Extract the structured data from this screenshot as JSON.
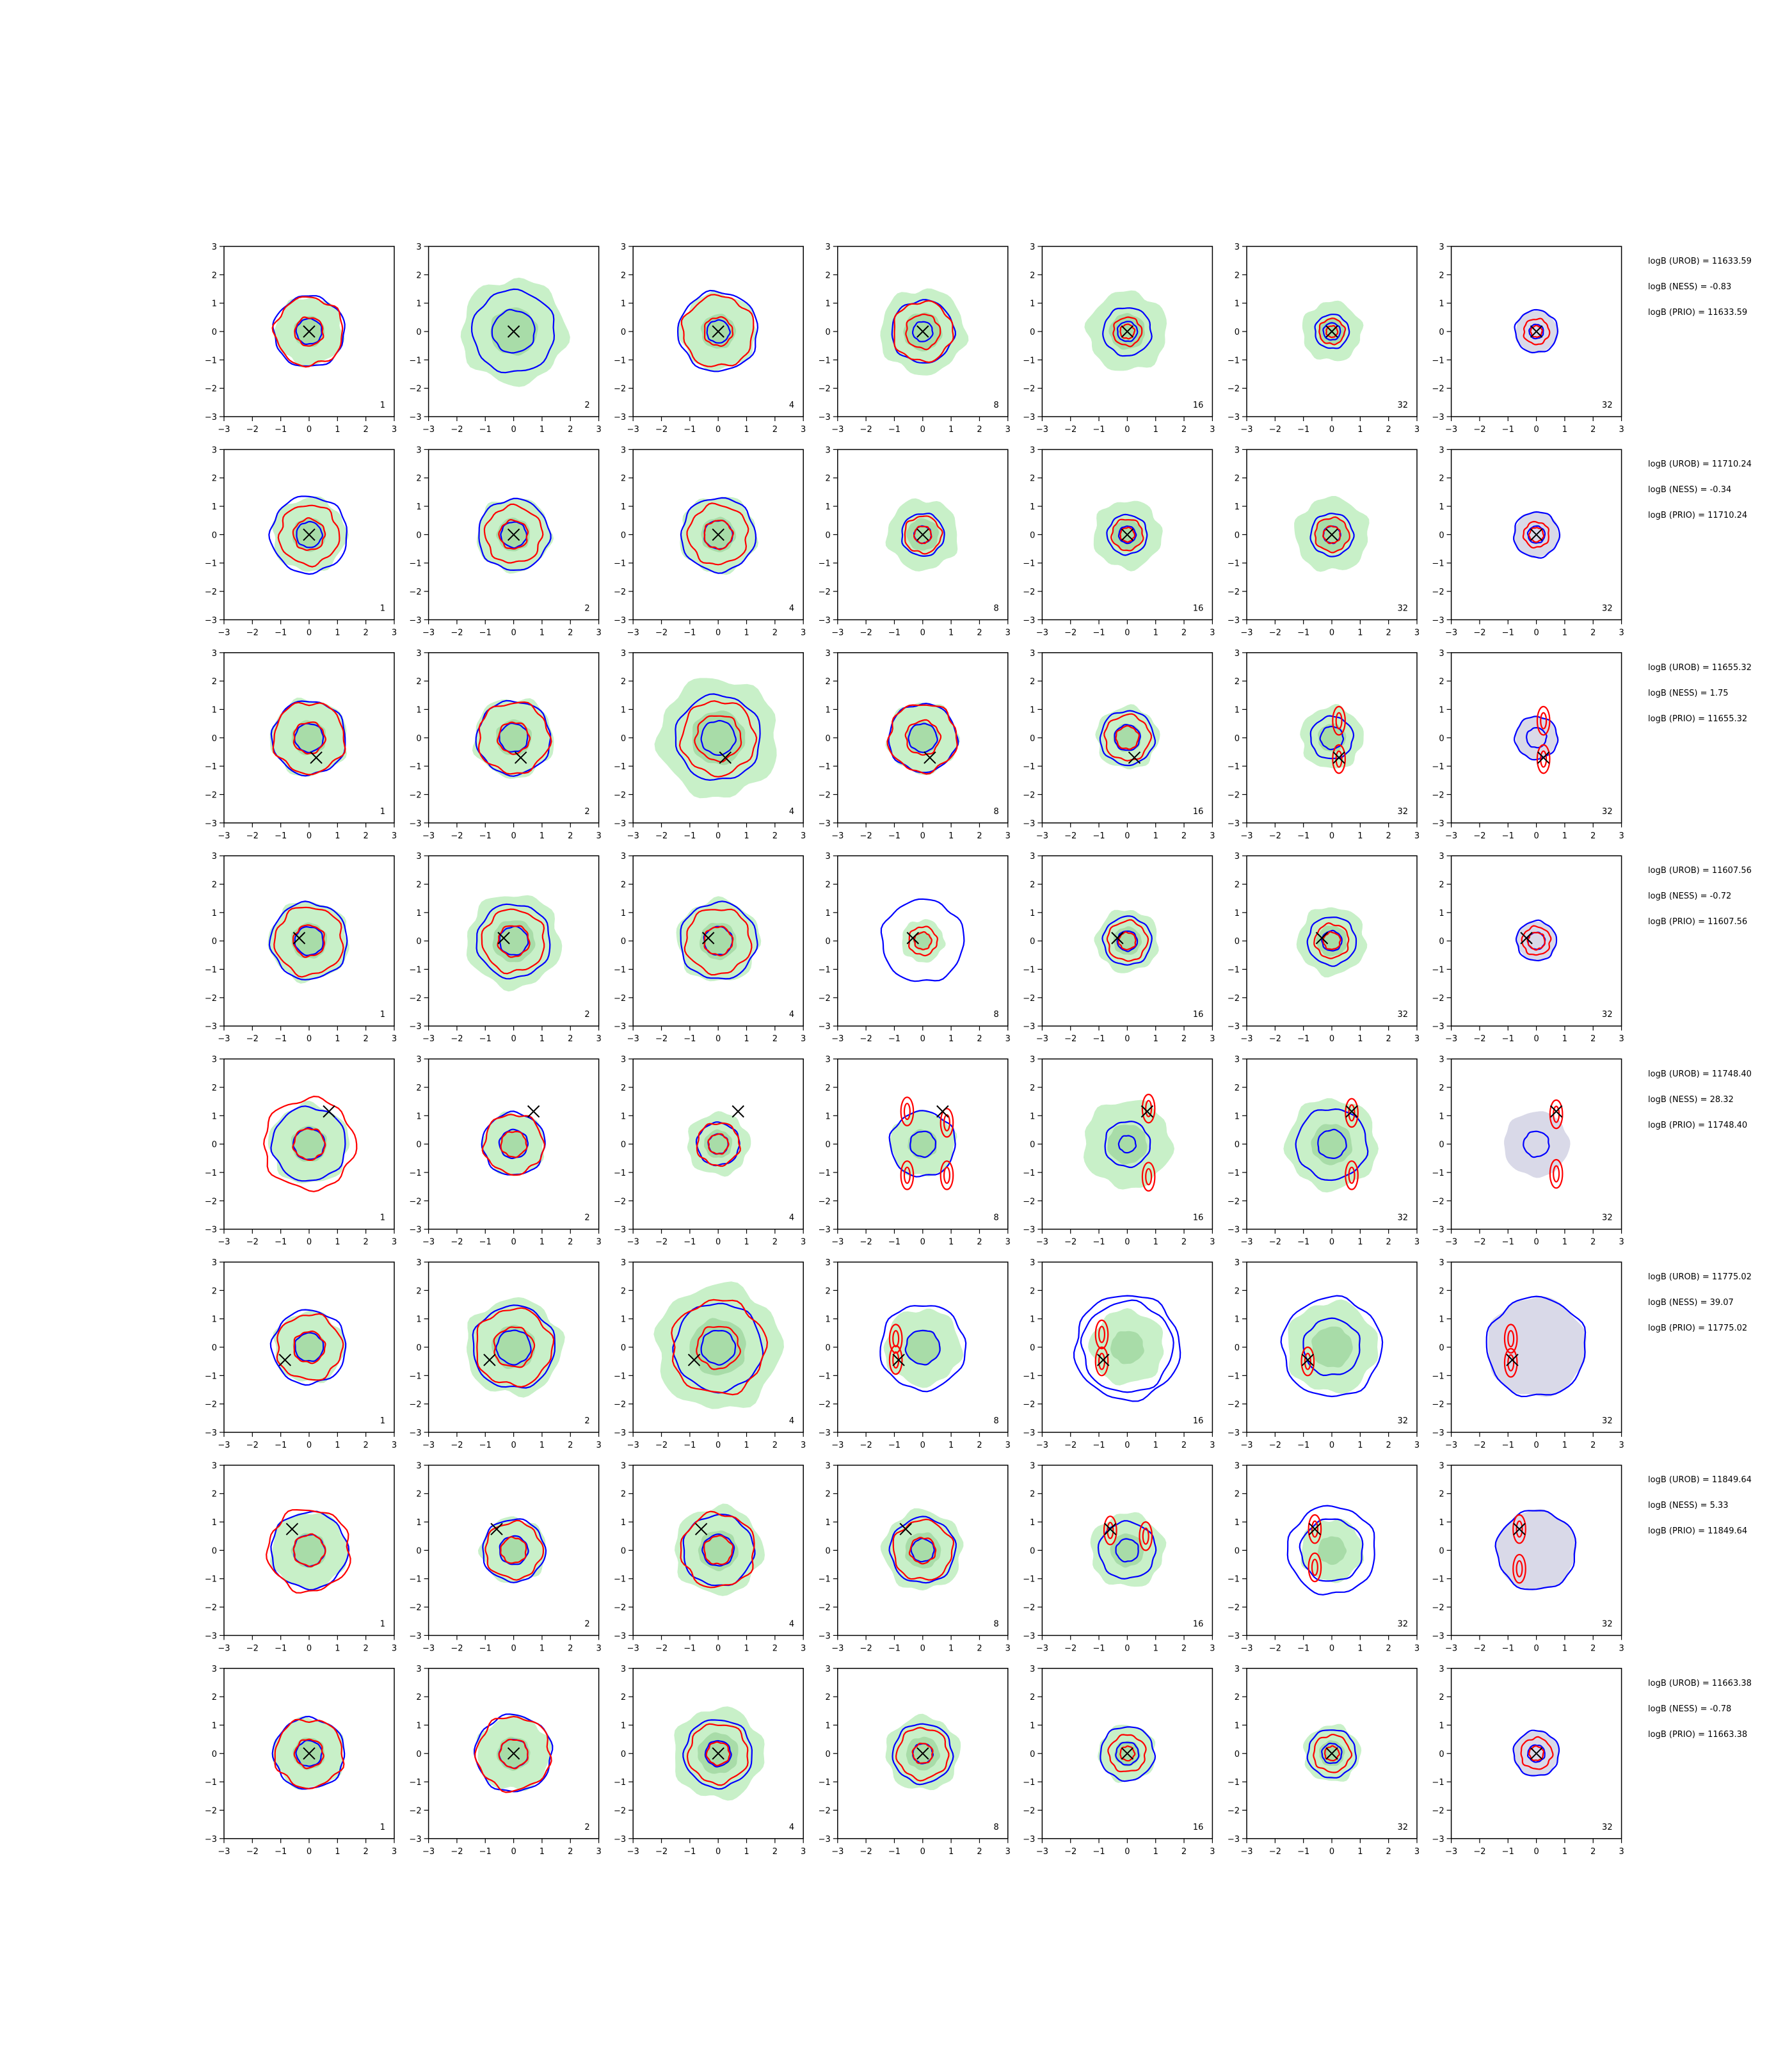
{
  "chart_data": {
    "type": "contour-grid",
    "title": "",
    "xlabel": "",
    "ylabel": "",
    "xlim": [
      -3,
      3
    ],
    "ylim": [
      -3,
      3
    ],
    "ticks": [
      "−3",
      "−2",
      "−1",
      "0",
      "1",
      "2",
      "3"
    ],
    "column_labels": [
      "1",
      "2",
      "4",
      "8",
      "16",
      "32",
      "32"
    ],
    "colors": {
      "blue_contour": "#0000ff",
      "red_contour": "#ff0000",
      "green_fill": "#c8f0c8",
      "green_fill_dark": "#a8dca8",
      "grey_fill": "#d9d9e8",
      "marker": "#000000"
    },
    "rows": [
      {
        "marker": [
          0,
          0
        ],
        "annotations": [
          "logB (UROB) = 11633.59",
          "logB (NESS) = -0.83",
          "logB (PRIO) = 11633.59"
        ],
        "panels": [
          {
            "green": 1.2,
            "blue": [
              1.25,
              0.45
            ],
            "red": [
              1.2,
              0.5
            ]
          },
          {
            "green": 1.85,
            "blue": [
              1.45,
              0.75
            ],
            "red": []
          },
          {
            "green": 1.35,
            "blue": [
              1.4,
              0.4
            ],
            "red": [
              1.25,
              0.5
            ]
          },
          {
            "green": 1.5,
            "blue": [
              1.1,
              0.35
            ],
            "red": [
              1.05,
              0.6
            ]
          },
          {
            "green": 1.4,
            "blue": [
              0.85,
              0.35
            ],
            "red": [
              0.5,
              0.25
            ]
          },
          {
            "green": 1.05,
            "blue": [
              0.6,
              0.3
            ],
            "red": [
              0.45,
              0.2
            ]
          },
          {
            "green": 0.0,
            "blue": [
              0.75,
              0.25
            ],
            "red": [
              0.45,
              0.2
            ],
            "grey": 0.75
          }
        ]
      },
      {
        "marker": [
          0,
          0
        ],
        "annotations": [
          "logB (UROB) = 11710.24",
          "logB (NESS) = -0.34",
          "logB (PRIO) = 11710.24"
        ],
        "panels": [
          {
            "green": 1.3,
            "blue": [
              1.35,
              0.45
            ],
            "red": [
              1.05,
              0.55
            ]
          },
          {
            "green": 1.3,
            "blue": [
              1.25,
              0.45
            ],
            "red": [
              1.0,
              0.5
            ]
          },
          {
            "green": 1.35,
            "blue": [
              1.3,
              0.5
            ],
            "red": [
              1.05,
              0.5
            ]
          },
          {
            "green": 1.25,
            "blue": [
              0.75,
              0.3
            ],
            "red": [
              0.65,
              0.3
            ]
          },
          {
            "green": 1.2,
            "blue": [
              0.7,
              0.3
            ],
            "red": [
              0.55,
              0.25
            ]
          },
          {
            "green": 1.3,
            "blue": [
              0.75,
              0.3
            ],
            "red": [
              0.6,
              0.3
            ]
          },
          {
            "green": 0.0,
            "blue": [
              0.8,
              0.3
            ],
            "red": [
              0.45,
              0.25
            ],
            "grey": 0.8
          }
        ]
      },
      {
        "marker": [
          0.25,
          -0.7
        ],
        "annotations": [
          "logB (UROB) = 11655.32",
          "logB (NESS) = 1.75",
          "logB (PRIO) = 11655.32"
        ],
        "panels": [
          {
            "green": 1.35,
            "blue": [
              1.3,
              0.5
            ],
            "red": [
              1.25,
              0.55
            ]
          },
          {
            "green": 1.4,
            "blue": [
              1.3,
              0.5
            ],
            "red": [
              1.25,
              0.55
            ]
          },
          {
            "green": 2.1,
            "blue": [
              1.5,
              0.6
            ],
            "red": [
              1.3,
              0.8
            ]
          },
          {
            "green": 1.25,
            "blue": [
              1.2,
              0.5
            ],
            "red": [
              1.2,
              0.6
            ]
          },
          {
            "green": 1.1,
            "blue": [
              0.95,
              0.45
            ],
            "red": [
              0.8,
              0.4
            ]
          },
          {
            "green": 1.1,
            "blue": [
              0.75,
              0.4
            ],
            "red": [],
            "lobes": [
              [
                0.25,
                0.6
              ],
              [
                0.25,
                -0.75
              ]
            ]
          },
          {
            "green": 0.0,
            "blue": [
              0.75,
              0.35
            ],
            "red": [],
            "lobes": [
              [
                0.25,
                0.6
              ],
              [
                0.25,
                -0.75
              ]
            ],
            "grey": 0.75
          }
        ]
      },
      {
        "marker": [
          -0.35,
          0.1
        ],
        "annotations": [
          "logB (UROB) = 11607.56",
          "logB (NESS) = -0.72",
          "logB (PRIO) = 11607.56"
        ],
        "panels": [
          {
            "green": 1.4,
            "blue": [
              1.35,
              0.5
            ],
            "red": [
              1.2,
              0.55
            ]
          },
          {
            "green": 1.65,
            "blue": [
              1.3,
              0.5
            ],
            "red": [
              1.1,
              0.55
            ]
          },
          {
            "green": 1.45,
            "blue": [
              1.35,
              0.5
            ],
            "red": [
              1.15,
              0.5
            ]
          },
          {
            "green": 0.75,
            "blue": [
              1.45,
              0.0
            ],
            "red": [
              0.5,
              0.3
            ]
          },
          {
            "green": 1.1,
            "blue": [
              0.85,
              0.35
            ],
            "red": [
              0.7,
              0.3
            ]
          },
          {
            "green": 1.2,
            "blue": [
              0.85,
              0.35
            ],
            "red": [
              0.6,
              0.3
            ]
          },
          {
            "green": 0.0,
            "blue": [
              0.7,
              0.3
            ],
            "red": [
              0.5,
              0.3
            ],
            "grey": 0.7
          }
        ]
      },
      {
        "marker": [
          0.7,
          1.15
        ],
        "annotations": [
          "logB (UROB) = 11748.40",
          "logB (NESS) = 28.32",
          "logB (PRIO) = 11748.40"
        ],
        "panels": [
          {
            "green": 1.4,
            "blue": [
              1.3,
              0.55
            ],
            "red": [
              1.6,
              0.55
            ]
          },
          {
            "green": 1.1,
            "blue": [
              1.1,
              0.5
            ],
            "red": [
              1.05,
              0.45
            ]
          },
          {
            "green": 1.1,
            "blue": [
              0.75,
              0.35
            ],
            "red": [
              0.75,
              0.35
            ]
          },
          {
            "green": 1.15,
            "blue": [
              1.15,
              0.45
            ],
            "red": [],
            "lobes": [
              [
                -0.55,
                1.15
              ],
              [
                0.85,
                0.75
              ],
              [
                -0.55,
                -1.1
              ],
              [
                0.85,
                -1.1
              ]
            ]
          },
          {
            "green": 1.55,
            "blue": [
              0.8,
              0.3
            ],
            "red": [],
            "lobes": [
              [
                0.75,
                1.25
              ],
              [
                0.75,
                -1.15
              ]
            ]
          },
          {
            "green": 1.6,
            "blue": [
              1.25,
              0.5
            ],
            "red": [],
            "lobes": [
              [
                0.7,
                1.1
              ],
              [
                0.7,
                -1.1
              ]
            ]
          },
          {
            "green": 0.0,
            "blue": [
              0.0,
              0.45
            ],
            "red": [],
            "lobes": [
              [
                0.7,
                1.05
              ],
              [
                0.7,
                -1.05
              ]
            ],
            "grey": 1.15
          }
        ]
      },
      {
        "marker": [
          -0.85,
          -0.45
        ],
        "annotations": [
          "logB (UROB) = 11775.02",
          "logB (NESS) = 39.07",
          "logB (PRIO) = 11775.02"
        ],
        "panels": [
          {
            "green": 1.25,
            "blue": [
              1.3,
              0.5
            ],
            "red": [
              1.15,
              0.55
            ]
          },
          {
            "green": 1.7,
            "blue": [
              1.45,
              0.6
            ],
            "red": [
              1.35,
              0.7
            ]
          },
          {
            "green": 2.2,
            "blue": [
              1.55,
              0.6
            ],
            "red": [
              1.65,
              0.75
            ]
          },
          {
            "green": 1.35,
            "blue": [
              1.5,
              0.6
            ],
            "red": [],
            "lobes": [
              [
                -0.95,
                0.3
              ],
              [
                -0.95,
                -0.45
              ]
            ]
          },
          {
            "green": 1.3,
            "blue": [
              1.85,
              1.6
            ],
            "red": [],
            "lobes": [
              [
                -0.9,
                0.45
              ],
              [
                -0.9,
                -0.5
              ]
            ]
          },
          {
            "green": 1.6,
            "blue": [
              1.75,
              1.0
            ],
            "red": [],
            "lobes": [
              [
                -0.85,
                -0.5
              ]
            ]
          },
          {
            "green": 0.0,
            "blue": [
              1.75,
              0.0
            ],
            "red": [],
            "lobes": [
              [
                -0.9,
                0.3
              ],
              [
                -0.9,
                -0.55
              ]
            ],
            "grey": 1.75
          }
        ]
      },
      {
        "marker": [
          -0.6,
          0.75
        ],
        "annotations": [
          "logB (UROB) = 11849.64",
          "logB (NESS) = 5.33",
          "logB (PRIO) = 11849.64"
        ],
        "panels": [
          {
            "green": 1.35,
            "blue": [
              1.35,
              0.55
            ],
            "red": [
              1.45,
              0.55
            ]
          },
          {
            "green": 1.15,
            "blue": [
              1.1,
              0.5
            ],
            "red": [
              1.0,
              0.45
            ]
          },
          {
            "green": 1.55,
            "blue": [
              1.25,
              0.55
            ],
            "red": [
              1.3,
              0.5
            ]
          },
          {
            "green": 1.4,
            "blue": [
              1.15,
              0.4
            ],
            "red": [
              1.05,
              0.45
            ]
          },
          {
            "green": 1.3,
            "blue": [
              1.0,
              0.4
            ],
            "red": [],
            "lobes": [
              [
                -0.6,
                0.7
              ],
              [
                0.65,
                0.5
              ]
            ]
          },
          {
            "green": 1.1,
            "blue": [
              1.55,
              1.1
            ],
            "red": [],
            "lobes": [
              [
                -0.6,
                0.75
              ],
              [
                -0.6,
                -0.6
              ]
            ]
          },
          {
            "green": 0.0,
            "blue": [
              1.4,
              0.0
            ],
            "red": [],
            "lobes": [
              [
                -0.6,
                0.75
              ],
              [
                -0.6,
                -0.65
              ]
            ],
            "grey": 1.4
          }
        ]
      },
      {
        "marker": [
          0,
          0
        ],
        "annotations": [
          "logB (UROB) = 11663.38",
          "logB (NESS) = -0.78",
          "logB (PRIO) = 11663.38"
        ],
        "panels": [
          {
            "green": 1.25,
            "blue": [
              1.25,
              0.45
            ],
            "red": [
              1.2,
              0.5
            ]
          },
          {
            "green": 1.3,
            "blue": [
              1.35,
              0.5
            ],
            "red": [
              1.3,
              0.5
            ]
          },
          {
            "green": 1.6,
            "blue": [
              1.2,
              0.45
            ],
            "red": [
              1.05,
              0.4
            ]
          },
          {
            "green": 1.3,
            "blue": [
              1.05,
              0.35
            ],
            "red": [
              0.9,
              0.35
            ]
          },
          {
            "green": 1.0,
            "blue": [
              0.95,
              0.4
            ],
            "red": [
              0.65,
              0.25
            ]
          },
          {
            "green": 1.0,
            "blue": [
              0.85,
              0.35
            ],
            "red": [
              0.65,
              0.25
            ]
          },
          {
            "green": 0.0,
            "blue": [
              0.8,
              0.3
            ],
            "red": [
              0.55,
              0.25
            ],
            "grey": 0.8
          }
        ]
      }
    ]
  }
}
